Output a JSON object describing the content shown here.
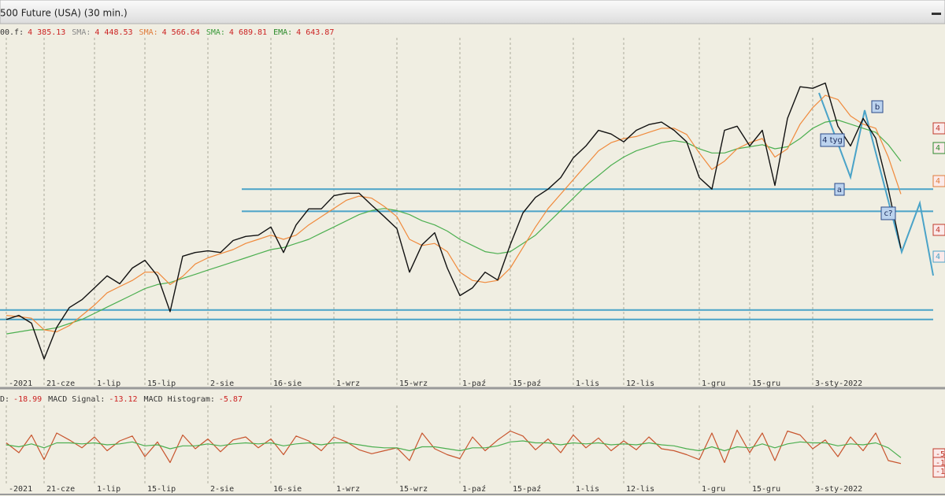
{
  "header": {
    "title": "500 Future (USA) (30 min.)"
  },
  "chart_data": [
    {
      "type": "line",
      "legend_items": [
        {
          "label": "00.f:",
          "value": "4 385.13",
          "label_color": "#333333"
        },
        {
          "label": "SMA:",
          "value": "4 448.53",
          "label_color": "#888888"
        },
        {
          "label": "SMA:",
          "value": "4 566.64",
          "label_color": "#e07b39"
        },
        {
          "label": "SMA:",
          "value": "4 689.81",
          "label_color": "#3a9a3a"
        },
        {
          "label": "EMA:",
          "value": "4 643.87",
          "label_color": "#2a8a2a"
        }
      ],
      "legend_value_color": "#cc2222",
      "categories": [
        "-2021",
        null,
        null,
        "21-cze",
        null,
        null,
        null,
        "1-lip",
        null,
        null,
        null,
        "15-lip",
        null,
        null,
        null,
        null,
        "2-sie",
        null,
        null,
        null,
        null,
        "16-sie",
        null,
        null,
        null,
        null,
        "1-wrz",
        null,
        null,
        null,
        null,
        "15-wrz",
        null,
        null,
        null,
        null,
        "1-paź",
        null,
        null,
        null,
        "15-paź",
        null,
        null,
        null,
        null,
        "1-lis",
        null,
        null,
        null,
        "12-lis",
        null,
        null,
        null,
        null,
        null,
        "1-gru",
        null,
        null,
        null,
        "15-gru",
        null,
        null,
        null,
        null,
        "3-sty-2022",
        null,
        null,
        null,
        null,
        null,
        null,
        null
      ],
      "ylim": [
        4060,
        4910
      ],
      "series": [
        {
          "color": "#4caf50",
          "values": [
            4190,
            4195,
            4200,
            4200,
            4205,
            4215,
            4225,
            4240,
            4255,
            4270,
            4285,
            4300,
            4310,
            4315,
            4325,
            4335,
            4345,
            4355,
            4365,
            4375,
            4385,
            4395,
            4400,
            4410,
            4420,
            4435,
            4450,
            4465,
            4480,
            4490,
            4495,
            4490,
            4480,
            4465,
            4455,
            4440,
            4420,
            4405,
            4390,
            4385,
            4390,
            4410,
            4430,
            4460,
            4490,
            4520,
            4550,
            4575,
            4600,
            4620,
            4635,
            4645,
            4655,
            4660,
            4655,
            4640,
            4630,
            4630,
            4640,
            4645,
            4650,
            4640,
            4645,
            4665,
            4690,
            4705,
            4710,
            4700,
            4690,
            4680,
            4650,
            4610
          ]
        },
        {
          "color": "#f08a3c",
          "values": [
            4235,
            4232,
            4228,
            4200,
            4195,
            4210,
            4235,
            4260,
            4290,
            4305,
            4320,
            4340,
            4340,
            4310,
            4330,
            4360,
            4375,
            4385,
            4395,
            4410,
            4420,
            4430,
            4420,
            4430,
            4455,
            4475,
            4495,
            4515,
            4525,
            4520,
            4500,
            4475,
            4420,
            4405,
            4410,
            4390,
            4340,
            4320,
            4315,
            4320,
            4350,
            4400,
            4450,
            4495,
            4530,
            4565,
            4600,
            4635,
            4655,
            4665,
            4670,
            4680,
            4690,
            4690,
            4675,
            4630,
            4590,
            4610,
            4640,
            4655,
            4665,
            4620,
            4640,
            4700,
            4740,
            4770,
            4760,
            4720,
            4700,
            4690,
            4620,
            4530
          ]
        },
        {
          "color": "#111111",
          "values": [
            4225,
            4235,
            4216,
            4129,
            4206,
            4254,
            4273,
            4302,
            4331,
            4312,
            4350,
            4369,
            4331,
            4244,
            4379,
            4388,
            4392,
            4388,
            4417,
            4427,
            4430,
            4450,
            4388,
            4455,
            4494,
            4494,
            4526,
            4532,
            4532,
            4503,
            4475,
            4446,
            4340,
            4407,
            4436,
            4350,
            4283,
            4302,
            4340,
            4321,
            4407,
            4484,
            4522,
            4542,
            4570,
            4618,
            4647,
            4685,
            4676,
            4657,
            4685,
            4699,
            4705,
            4685,
            4657,
            4570,
            4542,
            4685,
            4695,
            4647,
            4685,
            4551,
            4714,
            4791,
            4787,
            4800,
            4695,
            4647,
            4714,
            4666,
            4542,
            4398
          ]
        }
      ],
      "levels": [
        4542,
        4488,
        4248,
        4225
      ],
      "level_color": "#4aa3c8",
      "annotations": [
        "b",
        "4 tyg",
        "a",
        "c?"
      ],
      "price_tags": [
        {
          "label": "4",
          "color": "#c0392b"
        },
        {
          "label": "4",
          "color": "#2e8b2e"
        },
        {
          "label": "4",
          "color": "#e07b39"
        },
        {
          "label": "4",
          "color": "#c0392b"
        },
        {
          "label": "4",
          "color": "#4aa3c8"
        }
      ]
    },
    {
      "type": "line",
      "legend_items": [
        {
          "label": "D:",
          "value": "-18.99",
          "label_color": "#333333"
        },
        {
          "label": "MACD Signal:",
          "value": "-13.12",
          "label_color": "#333333"
        },
        {
          "label": "MACD Histogram:",
          "value": "-5.87",
          "label_color": "#333333"
        }
      ],
      "legend_value_color": "#cc2222",
      "categories": [
        "-2021",
        null,
        null,
        "21-cze",
        null,
        null,
        null,
        "1-lip",
        null,
        null,
        null,
        "15-lip",
        null,
        null,
        null,
        null,
        "2-sie",
        null,
        null,
        null,
        null,
        "16-sie",
        null,
        null,
        null,
        null,
        "1-wrz",
        null,
        null,
        null,
        null,
        "15-wrz",
        null,
        null,
        null,
        null,
        "1-paź",
        null,
        null,
        null,
        "15-paź",
        null,
        null,
        null,
        null,
        "1-lis",
        null,
        null,
        null,
        "12-lis",
        null,
        null,
        null,
        null,
        null,
        "1-gru",
        null,
        null,
        null,
        "15-gru",
        null,
        null,
        null,
        null,
        "3-sty-2022",
        null,
        null,
        null,
        null,
        null,
        null,
        null
      ],
      "ylim": [
        -40,
        40
      ],
      "series": [
        {
          "color": "#c8552e",
          "values": [
            2,
            -8,
            10,
            -15,
            12,
            5,
            -3,
            8,
            -6,
            4,
            9,
            -12,
            3,
            -18,
            10,
            -4,
            6,
            -7,
            5,
            8,
            -3,
            6,
            -10,
            9,
            4,
            -6,
            8,
            3,
            -5,
            -9,
            -6,
            -3,
            -16,
            12,
            -4,
            -10,
            -14,
            8,
            -6,
            5,
            14,
            9,
            -5,
            6,
            -8,
            10,
            -3,
            7,
            -6,
            4,
            -5,
            8,
            -4,
            -6,
            -10,
            -15,
            12,
            -18,
            15,
            -8,
            12,
            -16,
            14,
            10,
            -4,
            5,
            -12,
            8,
            -6,
            12,
            -16,
            -19
          ]
        },
        {
          "color": "#4caf50",
          "values": [
            0,
            -2,
            1,
            -3,
            2,
            2,
            1,
            2,
            0,
            1,
            3,
            -1,
            0,
            -4,
            -1,
            -1,
            1,
            -1,
            1,
            2,
            1,
            2,
            -1,
            1,
            2,
            0,
            2,
            2,
            0,
            -2,
            -3,
            -3,
            -6,
            -2,
            -2,
            -4,
            -6,
            -3,
            -3,
            -1,
            3,
            4,
            2,
            2,
            0,
            2,
            1,
            2,
            0,
            1,
            0,
            2,
            0,
            -1,
            -4,
            -6,
            -2,
            -6,
            -2,
            -3,
            1,
            -3,
            1,
            3,
            2,
            2,
            -1,
            1,
            0,
            2,
            -3,
            -13
          ]
        }
      ],
      "price_tags": [
        {
          "label": "-5",
          "color": "#c0392b"
        },
        {
          "label": "-1",
          "color": "#c0392b"
        },
        {
          "label": "-1",
          "color": "#c0392b"
        }
      ]
    }
  ]
}
